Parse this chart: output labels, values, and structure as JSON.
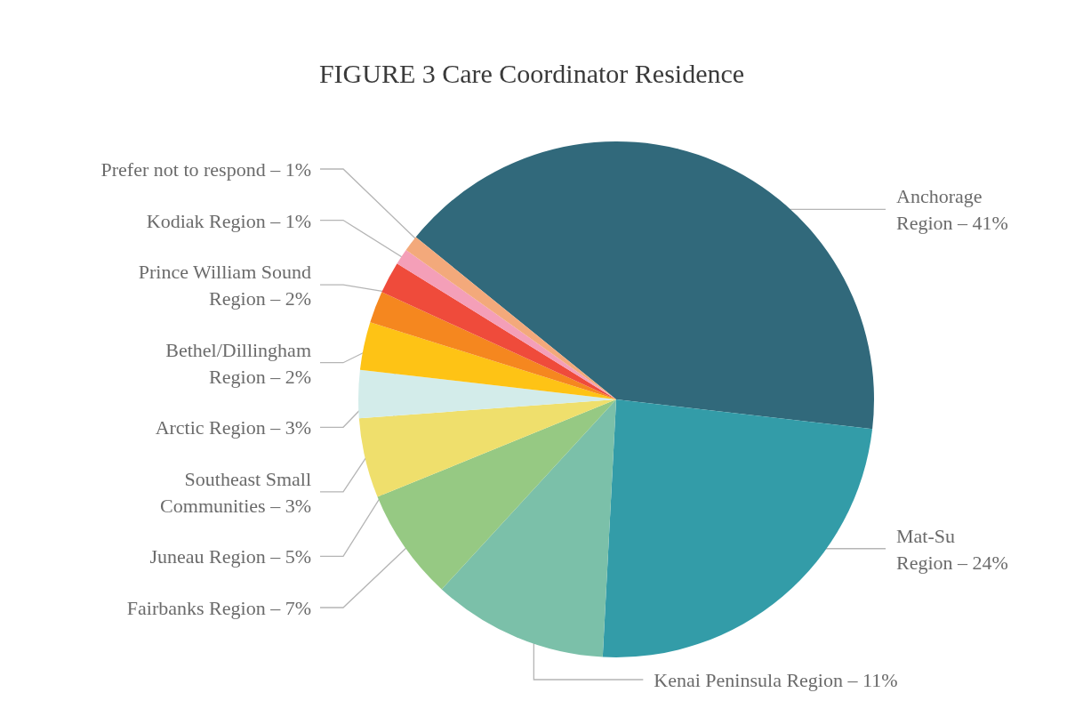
{
  "chart_data": {
    "type": "pie",
    "title": "FIGURE 3 Care Coordinator Residence",
    "categories": [
      "Anchorage\nRegion – 41%",
      "Mat-Su\nRegion – 24%",
      "Kenai Peninsula Region – 11%",
      "Fairbanks Region – 7%",
      "Juneau Region – 5%",
      "Southeast Small\nCommunities – 3%",
      "Arctic Region – 3%",
      "Bethel/Dillingham\nRegion – 2%",
      "Prince William Sound\nRegion – 2%",
      "Kodiak Region – 1%",
      "Prefer not to respond – 1%"
    ],
    "values": [
      41,
      24,
      11,
      7,
      5,
      3,
      3,
      2,
      2,
      1,
      1
    ],
    "colors": [
      "#31697b",
      "#339ca8",
      "#7bc0a9",
      "#96c983",
      "#efdf6c",
      "#d3ecea",
      "#fec315",
      "#f5871f",
      "#ef4b3b",
      "#f49fb8",
      "#f3a97b"
    ]
  }
}
